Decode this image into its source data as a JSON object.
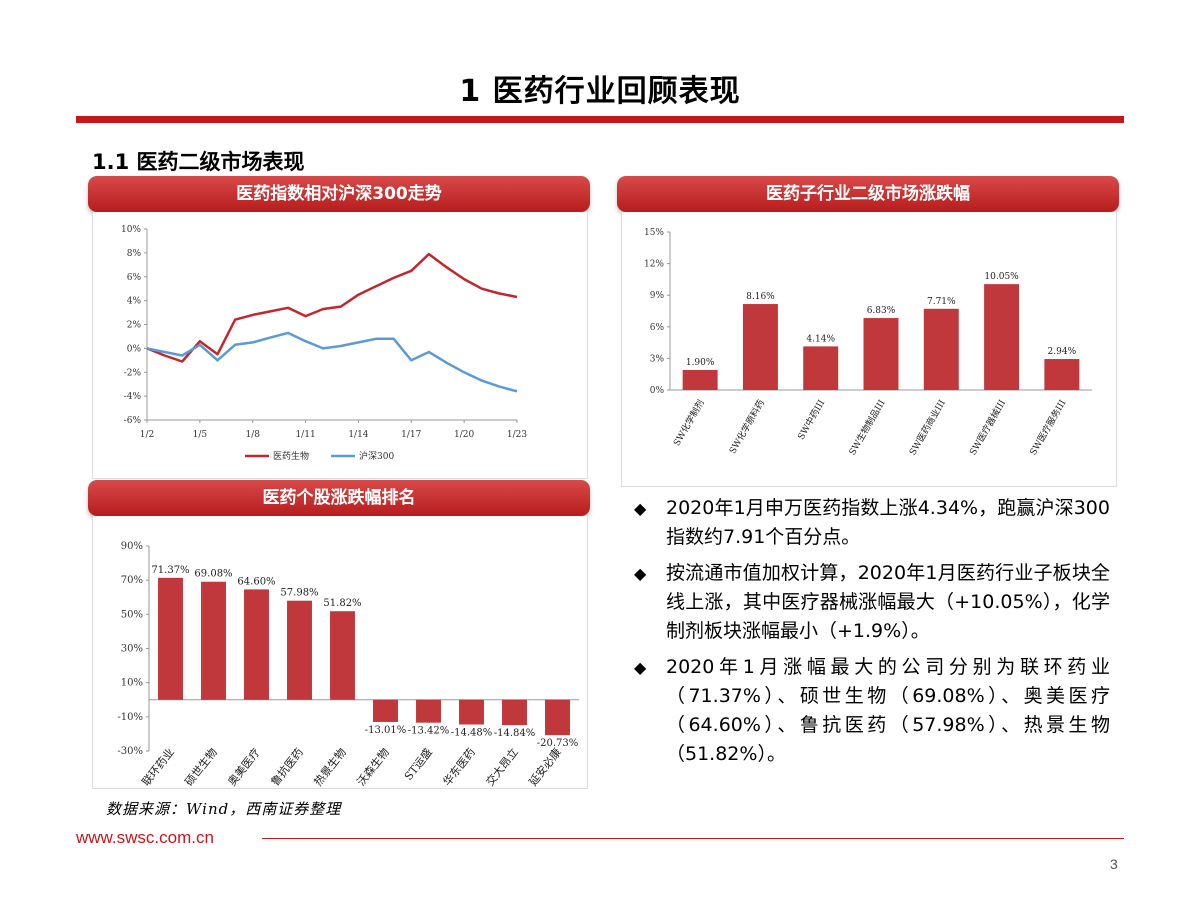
{
  "page": {
    "title": "1 医药行业回顾表现",
    "section_title": "1.1 医药二级市场表现",
    "website": "www.swsc.com.cn",
    "page_number": "3",
    "source": "数据来源：Wind，西南证券整理",
    "accent_color": "#c8161d"
  },
  "banners": {
    "line_chart": "医药指数相对沪深300走势",
    "sub_industry_chart": "医药子行业二级市场涨跌幅",
    "stock_chart": "医药个股涨跌幅排名"
  },
  "bullets": [
    "2020年1月申万医药指数上涨4.34%，跑赢沪深300指数约7.91个百分点。",
    "按流通市值加权计算，2020年1月医药行业子板块全线上涨，其中医疗器械涨幅最大（+10.05%），化学制剂板块涨幅最小（+1.9%）。",
    "2020年1月涨幅最大的公司分别为联环药业（71.37%）、硕世生物（69.08%）、奥美医疗（64.60%）、鲁抗医药（57.98%）、热景生物（51.82%）。"
  ],
  "bullet_marker": "◆",
  "chart_data": [
    {
      "type": "line",
      "ylim": [
        -6,
        10
      ],
      "yticks": [
        "10%",
        "8%",
        "6%",
        "4%",
        "2%",
        "0%",
        "-2%",
        "-4%",
        "-6%"
      ],
      "xticks": [
        "1/2",
        "1/5",
        "1/8",
        "1/11",
        "1/14",
        "1/17",
        "1/20",
        "1/23"
      ],
      "x_range": [
        0,
        21
      ],
      "series": [
        {
          "name": "医药生物",
          "color": "#c0282d",
          "x": [
            0,
            1,
            2,
            3,
            4,
            5,
            6,
            7,
            8,
            9,
            10,
            11,
            12,
            13,
            14,
            15,
            16,
            17,
            18,
            19,
            20,
            21
          ],
          "values": [
            0.0,
            -0.6,
            -1.1,
            0.6,
            -0.5,
            2.4,
            2.8,
            3.1,
            3.4,
            2.7,
            3.3,
            3.5,
            4.5,
            5.2,
            5.9,
            6.5,
            7.9,
            6.8,
            5.8,
            5.0,
            4.6,
            4.3
          ]
        },
        {
          "name": "沪深300",
          "color": "#5b9bd5",
          "x": [
            0,
            1,
            2,
            3,
            4,
            5,
            6,
            7,
            8,
            9,
            10,
            11,
            12,
            13,
            14,
            15,
            16,
            17,
            18,
            19,
            20,
            21
          ],
          "values": [
            0.0,
            -0.3,
            -0.6,
            0.3,
            -1.0,
            0.3,
            0.5,
            0.9,
            1.3,
            0.6,
            0.0,
            0.2,
            0.5,
            0.8,
            0.8,
            -1.0,
            -0.3,
            -1.2,
            -2.0,
            -2.7,
            -3.2,
            -3.6
          ]
        }
      ]
    },
    {
      "type": "bar",
      "categories": [
        "SW化学制剂",
        "SW化学原料药",
        "SW中药III",
        "SW生物制品III",
        "SW医药商业III",
        "SW医疗器械III",
        "SW医疗服务III"
      ],
      "values": [
        1.9,
        8.16,
        4.14,
        6.83,
        7.71,
        10.05,
        2.94
      ],
      "labels": [
        "1.90%",
        "8.16%",
        "4.14%",
        "6.83%",
        "7.71%",
        "10.05%",
        "2.94%"
      ],
      "ylim": [
        0,
        15
      ],
      "yticks": [
        "15%",
        "12%",
        "9%",
        "6%",
        "3%",
        "0%"
      ],
      "color": "#c0383c"
    },
    {
      "type": "bar",
      "categories": [
        "联环药业",
        "硕世生物",
        "奥美医疗",
        "鲁抗医药",
        "热景生物",
        "沃森生物",
        "ST运盛",
        "华东医药",
        "交大昂立",
        "延安必康"
      ],
      "values": [
        71.37,
        69.08,
        64.6,
        57.98,
        51.82,
        -13.01,
        -13.42,
        -14.48,
        -14.84,
        -20.73
      ],
      "labels": [
        "71.37%",
        "69.08%",
        "64.60%",
        "57.98%",
        "51.82%",
        "-13.01%",
        "-13.42%",
        "-14.48%",
        "-14.84%",
        "-20.73%"
      ],
      "ylim": [
        -30,
        90
      ],
      "yticks": [
        "90%",
        "70%",
        "50%",
        "30%",
        "10%",
        "-10%",
        "-30%"
      ],
      "color": "#c0383c"
    }
  ]
}
